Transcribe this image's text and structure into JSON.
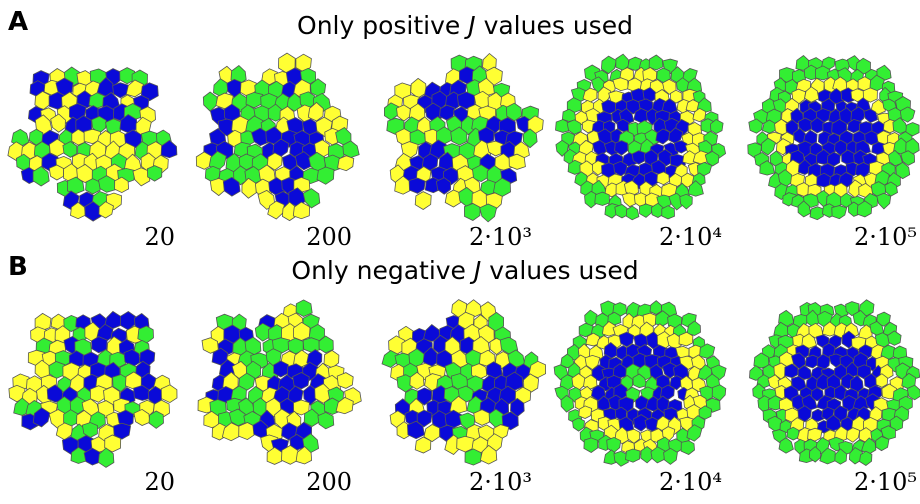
{
  "panels": [
    {
      "label": "A",
      "title_parts": [
        "Only positive ",
        "J",
        " values used"
      ],
      "times": [
        "20",
        "200",
        "2·10³",
        "2·10⁴",
        "2·10⁵"
      ]
    },
    {
      "label": "B",
      "title_parts": [
        "Only negative ",
        "J",
        " values used"
      ],
      "times": [
        "20",
        "200",
        "2·10³",
        "2·10⁴",
        "2·10⁵"
      ]
    }
  ]
}
